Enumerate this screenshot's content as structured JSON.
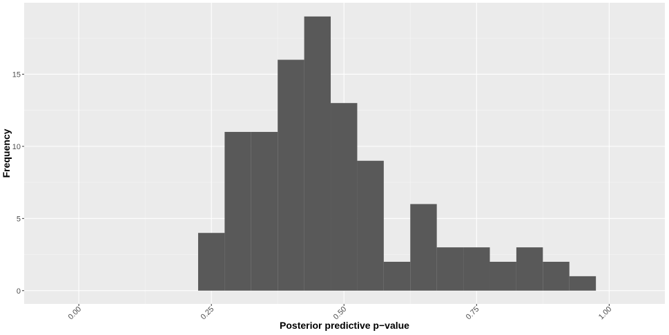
{
  "chart_data": {
    "type": "histogram",
    "x_label": "Posterior predictive p−value",
    "y_label": "Frequency",
    "bins": [
      -0.025,
      0.025,
      0.075,
      0.125,
      0.175,
      0.225,
      0.275,
      0.325,
      0.375,
      0.425,
      0.475,
      0.525,
      0.575,
      0.625,
      0.675,
      0.725,
      0.775,
      0.825,
      0.875,
      0.925,
      0.975,
      1.025
    ],
    "values": [
      0,
      0,
      0,
      0,
      0,
      4,
      11,
      11,
      16,
      19,
      13,
      9,
      2,
      6,
      3,
      3,
      2,
      3,
      2,
      1,
      0
    ],
    "color": "#595959",
    "xlim": [
      -0.103,
      1.105
    ],
    "ylim": [
      -0.92,
      19.95
    ],
    "xticks": [
      {
        "value": 0,
        "label": "0.00"
      },
      {
        "value": 0.25,
        "label": "0.25"
      },
      {
        "value": 0.5,
        "label": "0.50"
      },
      {
        "value": 0.75,
        "label": "0.75"
      },
      {
        "value": 1,
        "label": "1.00"
      }
    ],
    "yticks": [
      0,
      5,
      10,
      15
    ],
    "grid": true
  }
}
